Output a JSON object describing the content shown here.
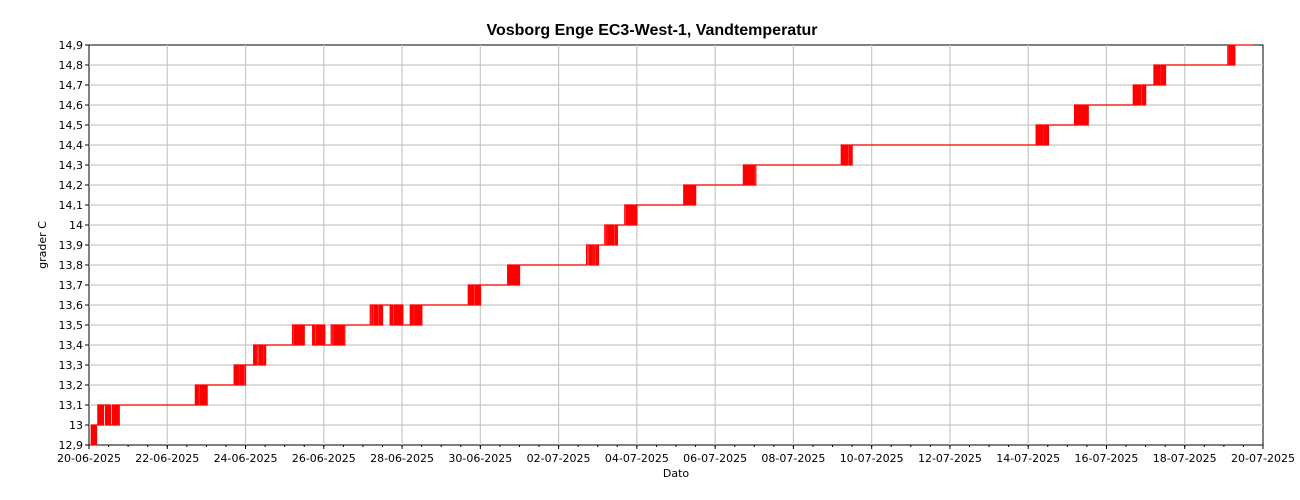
{
  "chart_data": {
    "type": "line",
    "title": "Vosborg Enge EC3-West-1, Vandtemperatur",
    "xlabel": "Dato",
    "ylabel": "grader C",
    "xlim": [
      "2025-06-20",
      "2025-07-20"
    ],
    "ylim": [
      12.9,
      14.9
    ],
    "x_ticks": [
      "20-06-2025",
      "22-06-2025",
      "24-06-2025",
      "26-06-2025",
      "28-06-2025",
      "30-06-2025",
      "02-07-2025",
      "04-07-2025",
      "06-07-2025",
      "08-07-2025",
      "10-07-2025",
      "12-07-2025",
      "14-07-2025",
      "16-07-2025",
      "18-07-2025",
      "20-07-2025"
    ],
    "y_ticks": [
      "12,9",
      "13",
      "13,1",
      "13,2",
      "13,3",
      "13,4",
      "13,5",
      "13,6",
      "13,7",
      "13,8",
      "13,9",
      "14",
      "14,1",
      "14,2",
      "14,3",
      "14,4",
      "14,5",
      "14,6",
      "14,7",
      "14,8",
      "14,9"
    ],
    "grid": true,
    "series": [
      {
        "color": "#ff0000",
        "x": [
          "2025-06-20 00:00",
          "2025-06-20 03:00",
          "2025-06-20 08:00",
          "2025-06-20 12:00",
          "2025-06-20 18:00",
          "2025-06-21 00:00",
          "2025-06-21 12:00",
          "2025-06-22 00:00",
          "2025-06-22 12:00",
          "2025-06-23 00:00",
          "2025-06-23 12:00",
          "2025-06-24 00:00",
          "2025-06-24 12:00",
          "2025-06-25 00:00",
          "2025-06-25 12:00",
          "2025-06-26 00:00",
          "2025-06-26 12:00",
          "2025-06-27 00:00",
          "2025-06-27 12:00",
          "2025-06-28 00:00",
          "2025-06-28 12:00",
          "2025-06-29 00:00",
          "2025-06-29 12:00",
          "2025-06-30 00:00",
          "2025-06-30 12:00",
          "2025-07-01 00:00",
          "2025-07-01 12:00",
          "2025-07-02 00:00",
          "2025-07-02 12:00",
          "2025-07-03 00:00",
          "2025-07-03 12:00",
          "2025-07-04 00:00",
          "2025-07-04 12:00",
          "2025-07-05 00:00",
          "2025-07-05 12:00",
          "2025-07-06 00:00",
          "2025-07-06 12:00",
          "2025-07-07 00:00",
          "2025-07-07 12:00",
          "2025-07-08 00:00",
          "2025-07-08 12:00",
          "2025-07-09 00:00",
          "2025-07-09 12:00",
          "2025-07-10 00:00",
          "2025-07-10 12:00",
          "2025-07-11 00:00",
          "2025-07-11 12:00",
          "2025-07-12 00:00",
          "2025-07-12 12:00",
          "2025-07-13 00:00",
          "2025-07-13 12:00",
          "2025-07-14 00:00",
          "2025-07-14 12:00",
          "2025-07-15 00:00",
          "2025-07-15 12:00",
          "2025-07-16 00:00",
          "2025-07-16 12:00",
          "2025-07-17 00:00",
          "2025-07-17 12:00",
          "2025-07-18 00:00",
          "2025-07-18 12:00",
          "2025-07-19 00:00",
          "2025-07-19 06:00",
          "2025-07-19 12:00"
        ],
        "y": [
          12.9,
          13.0,
          13.1,
          13.0,
          13.1,
          13.1,
          13.1,
          13.1,
          13.1,
          13.2,
          13.2,
          13.3,
          13.4,
          13.4,
          13.5,
          13.4,
          13.5,
          13.5,
          13.6,
          13.5,
          13.6,
          13.6,
          13.6,
          13.7,
          13.7,
          13.8,
          13.8,
          13.8,
          13.8,
          13.9,
          14.0,
          14.1,
          14.1,
          14.1,
          14.2,
          14.2,
          14.2,
          14.3,
          14.3,
          14.3,
          14.3,
          14.3,
          14.4,
          14.4,
          14.4,
          14.4,
          14.4,
          14.4,
          14.4,
          14.4,
          14.4,
          14.4,
          14.5,
          14.5,
          14.6,
          14.6,
          14.6,
          14.7,
          14.8,
          14.8,
          14.8,
          14.8,
          14.9,
          14.9
        ]
      }
    ]
  }
}
